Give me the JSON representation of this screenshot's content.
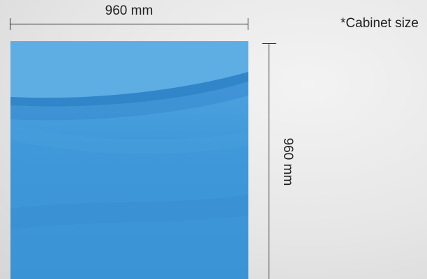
{
  "width_label": "960 mm",
  "height_label": "960 mm",
  "note": "*Cabinet size",
  "colors": {
    "panel_base": "#3d97d8",
    "panel_light": "#5aaae2",
    "panel_dark": "#2e7fc4",
    "dimension_lines": "#2b2b2b"
  }
}
